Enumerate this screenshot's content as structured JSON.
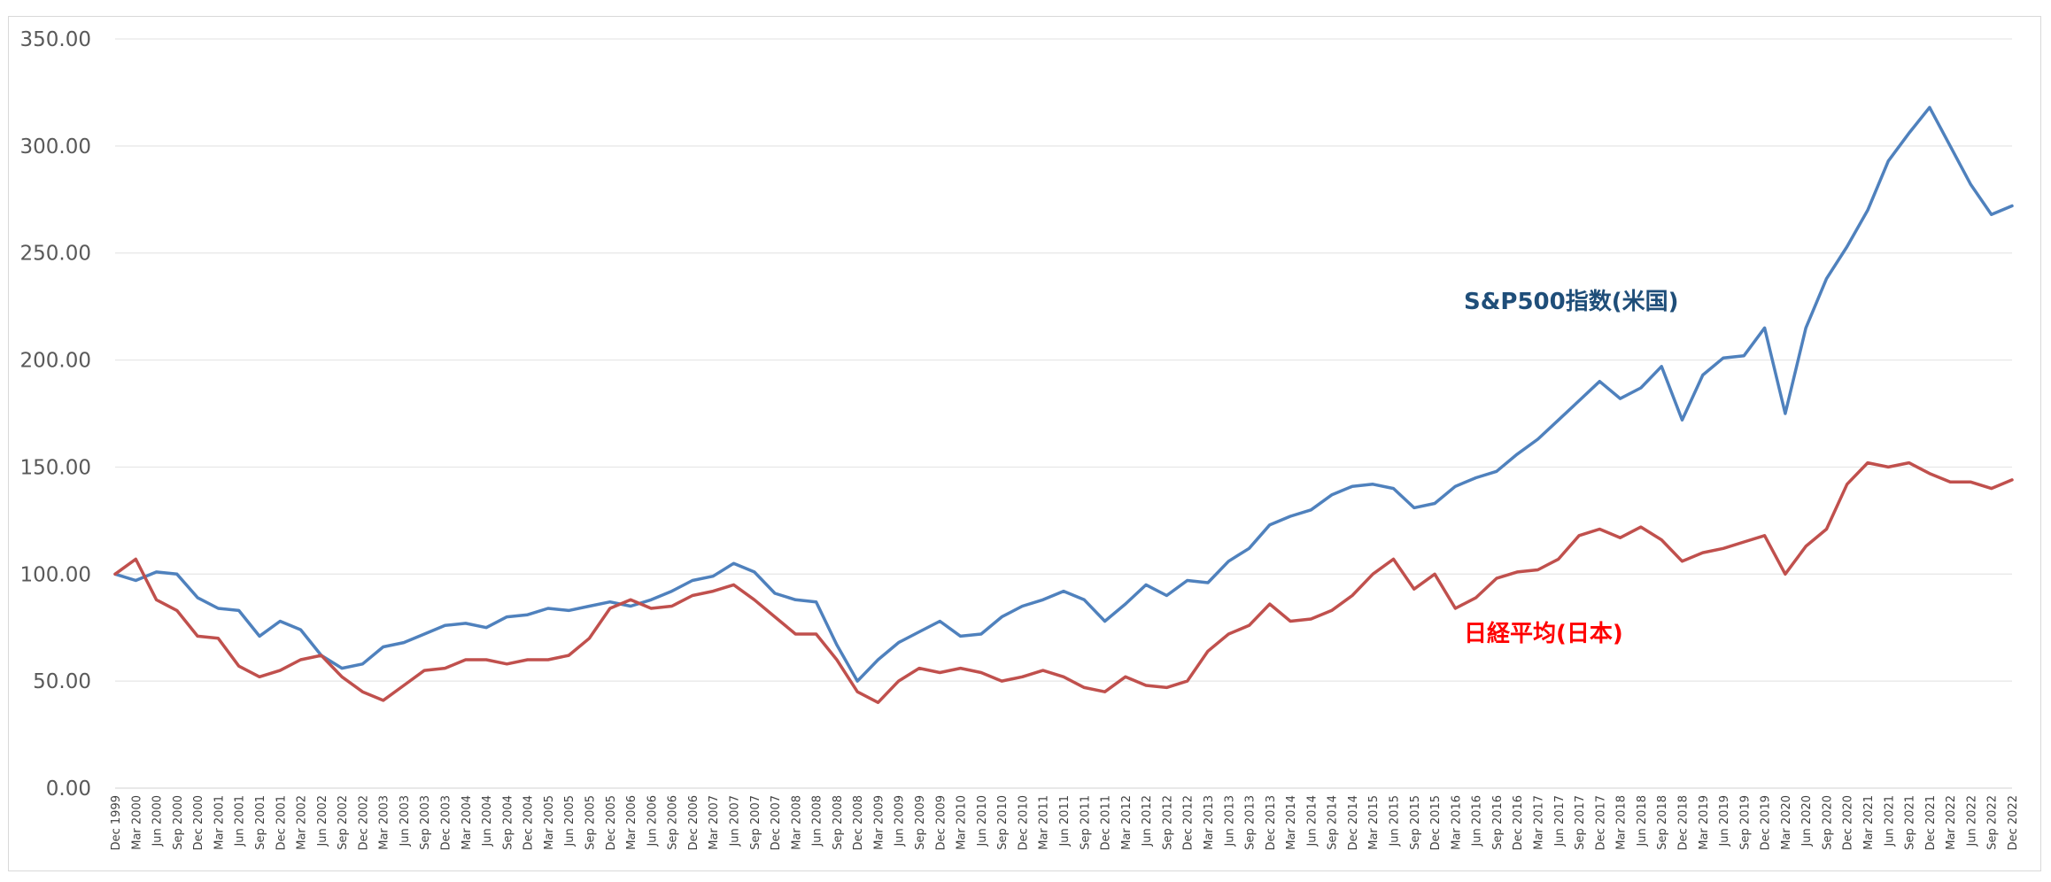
{
  "chart_data": {
    "type": "line",
    "title": "",
    "xlabel": "",
    "ylabel": "",
    "ylim": [
      0,
      350
    ],
    "yticks": [
      "0.00",
      "50.00",
      "100.00",
      "150.00",
      "200.00",
      "250.00",
      "300.00",
      "350.00"
    ],
    "grid": "horizontal",
    "legend": "inline labels",
    "x_tick_labels": [
      "Dec 1999",
      "Mar 2000",
      "Jun 2000",
      "Sep 2000",
      "Dec 2000",
      "Mar 2001",
      "Jun 2001",
      "Sep 2001",
      "Dec 2001",
      "Mar 2002",
      "Jun 2002",
      "Sep 2002",
      "Dec 2002",
      "Mar 2003",
      "Jun 2003",
      "Sep 2003",
      "Dec 2003",
      "Mar 2004",
      "Jun 2004",
      "Sep 2004",
      "Dec 2004",
      "Mar 2005",
      "Jun 2005",
      "Sep 2005",
      "Dec 2005",
      "Mar 2006",
      "Jun 2006",
      "Sep 2006",
      "Dec 2006",
      "Mar 2007",
      "Jun 2007",
      "Sep 2007",
      "Dec 2007",
      "Mar 2008",
      "Jun 2008",
      "Sep 2008",
      "Dec 2008",
      "Mar 2009",
      "Jun 2009",
      "Sep 2009",
      "Dec 2009",
      "Mar 2010",
      "Jun 2010",
      "Sep 2010",
      "Dec 2010",
      "Mar 2011",
      "Jun 2011",
      "Sep 2011",
      "Dec 2011",
      "Mar 2012",
      "Jun 2012",
      "Sep 2012",
      "Dec 2012",
      "Mar 2013",
      "Jun 2013",
      "Sep 2013",
      "Dec 2013",
      "Mar 2014",
      "Jun 2014",
      "Sep 2014",
      "Dec 2014",
      "Mar 2015",
      "Jun 2015",
      "Sep 2015",
      "Dec 2015",
      "Mar 2016",
      "Jun 2016",
      "Sep 2016",
      "Dec 2016",
      "Mar 2017",
      "Jun 2017",
      "Sep 2017",
      "Dec 2017",
      "Mar 2018",
      "Jun 2018",
      "Sep 2018",
      "Dec 2018",
      "Mar 2019",
      "Jun 2019",
      "Sep 2019",
      "Dec 2019",
      "Mar 2020",
      "Jun 2020",
      "Sep 2020",
      "Dec 2020",
      "Mar 2021",
      "Jun 2021",
      "Sep 2021",
      "Dec 2021",
      "Mar 2022",
      "Jun 2022",
      "Sep 2022",
      "Dec 2022"
    ],
    "x_note": "quarterly points, Dec 1999 to Dec 2022",
    "series": [
      {
        "name": "S&P500指数(米国)",
        "color": "#4f81bd",
        "label_color": "#1f4e79",
        "values": [
          100,
          97,
          101,
          100,
          89,
          84,
          83,
          71,
          78,
          74,
          62,
          56,
          58,
          66,
          68,
          72,
          76,
          77,
          75,
          80,
          81,
          84,
          83,
          85,
          87,
          85,
          88,
          92,
          97,
          99,
          105,
          101,
          91,
          88,
          87,
          67,
          50,
          60,
          68,
          73,
          78,
          71,
          72,
          80,
          85,
          88,
          92,
          88,
          78,
          86,
          95,
          90,
          97,
          96,
          106,
          112,
          123,
          127,
          130,
          137,
          141,
          142,
          140,
          131,
          133,
          141,
          145,
          148,
          156,
          163,
          172,
          181,
          190,
          182,
          187,
          197,
          172,
          193,
          201,
          202,
          215,
          175,
          215,
          238,
          253,
          270,
          293,
          306,
          318,
          300,
          282,
          268,
          272
        ]
      },
      {
        "name": "日経平均(日本)",
        "color": "#c0504d",
        "label_color": "#ff0000",
        "values": [
          100,
          107,
          88,
          83,
          71,
          70,
          57,
          52,
          55,
          60,
          62,
          52,
          45,
          41,
          48,
          55,
          56,
          60,
          60,
          58,
          60,
          60,
          62,
          70,
          84,
          88,
          84,
          85,
          90,
          92,
          95,
          88,
          80,
          72,
          72,
          60,
          45,
          40,
          50,
          56,
          54,
          56,
          54,
          50,
          52,
          55,
          52,
          47,
          45,
          52,
          48,
          47,
          50,
          64,
          72,
          76,
          86,
          78,
          79,
          83,
          90,
          100,
          107,
          93,
          100,
          84,
          89,
          98,
          101,
          102,
          107,
          118,
          121,
          117,
          122,
          116,
          106,
          110,
          112,
          115,
          118,
          100,
          113,
          121,
          142,
          152,
          150,
          152,
          147,
          143,
          143,
          140,
          144
        ]
      }
    ]
  }
}
